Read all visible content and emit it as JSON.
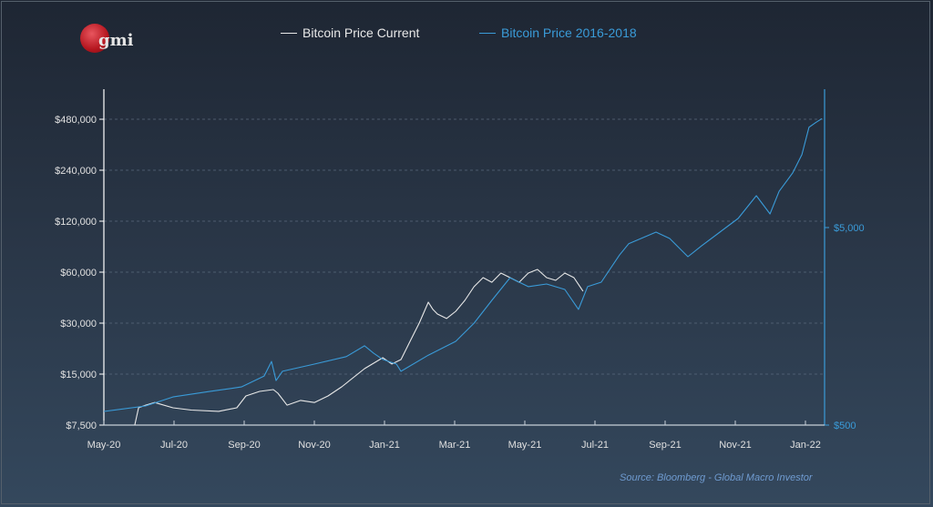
{
  "logo_text": "gmi",
  "source": "Source: Bloomberg - Global Macro Investor",
  "colors": {
    "current": "#e8e8e8",
    "historic": "#3a9bd8",
    "axis_left": "#ffffff",
    "axis_right": "#3a9bd8"
  },
  "chart_data": {
    "type": "line",
    "title": "",
    "legend_position": "top-center",
    "x_ticks": [
      "May-20",
      "Jul-20",
      "Sep-20",
      "Nov-20",
      "Jan-21",
      "Mar-21",
      "May-21",
      "Jul-21",
      "Sep-21",
      "Nov-21",
      "Jan-22"
    ],
    "x_unit": "months since May-20",
    "xlim": [
      0,
      20.5
    ],
    "y_left": {
      "scale": "log",
      "ticks": [
        "$7,500",
        "$15,000",
        "$30,000",
        "$60,000",
        "$120,000",
        "$240,000",
        "$480,000"
      ],
      "tick_values": [
        7500,
        15000,
        30000,
        60000,
        120000,
        240000,
        480000
      ],
      "ylim": [
        7500,
        480000
      ],
      "grid": "dashed"
    },
    "y_right": {
      "scale": "log",
      "ticks": [
        "$500",
        "$5,000"
      ],
      "tick_values": [
        500,
        5000
      ],
      "ylim": [
        500,
        20000
      ]
    },
    "series": [
      {
        "name": "Bitcoin Price Current",
        "axis": "left",
        "x": [
          0.88,
          0.99,
          1.19,
          1.45,
          1.97,
          2.49,
          3.27,
          3.79,
          4.05,
          4.44,
          4.83,
          4.96,
          5.22,
          5.61,
          6.0,
          6.39,
          6.78,
          7.43,
          7.95,
          8.21,
          8.47,
          8.73,
          8.99,
          9.25,
          9.38,
          9.51,
          9.77,
          10.03,
          10.29,
          10.55,
          10.81,
          11.06,
          11.32,
          11.58,
          11.84,
          12.1,
          12.36,
          12.62,
          12.88,
          13.14,
          13.4,
          13.66
        ],
        "y": [
          7500,
          9490,
          9830,
          10200,
          9490,
          9200,
          9040,
          9490,
          11150,
          11860,
          12150,
          11560,
          9830,
          10490,
          10200,
          11150,
          12610,
          16150,
          18740,
          17200,
          18290,
          23440,
          30000,
          39900,
          36150,
          33950,
          31950,
          35250,
          40900,
          49200,
          55700,
          52300,
          59250,
          55700,
          52300,
          59250,
          62250,
          55700,
          53700,
          59250,
          55700,
          46300
        ]
      },
      {
        "name": "Bitcoin Price 2016-2018",
        "axis": "right",
        "x": [
          0,
          1.19,
          1.97,
          3.01,
          3.92,
          4.57,
          4.78,
          4.91,
          5.09,
          6.0,
          6.91,
          7.43,
          7.69,
          7.95,
          8.34,
          8.47,
          9.25,
          10.03,
          10.55,
          11.06,
          11.58,
          12.1,
          12.62,
          13.14,
          13.53,
          13.79,
          14.18,
          14.7,
          14.96,
          15.74,
          16.13,
          16.65,
          17.04,
          17.56,
          18.08,
          18.6,
          18.99,
          19.25,
          19.64,
          19.9,
          20.1,
          20.29,
          20.47
        ],
        "y": [
          586,
          625,
          694,
          740,
          780,
          886,
          1050,
          840,
          936,
          1018,
          1110,
          1260,
          1155,
          1075,
          1018,
          936,
          1130,
          1327,
          1640,
          2140,
          2785,
          2510,
          2590,
          2430,
          1926,
          2510,
          2645,
          3630,
          4140,
          4740,
          4400,
          3560,
          4040,
          4740,
          5560,
          7250,
          5860,
          7630,
          9470,
          11700,
          16100,
          17000,
          17800
        ]
      }
    ]
  }
}
